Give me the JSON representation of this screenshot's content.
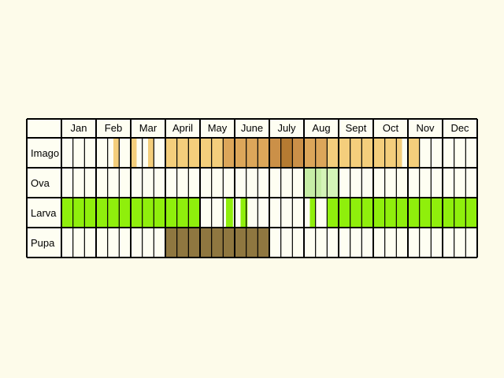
{
  "chart_data": {
    "type": "table",
    "months": [
      "Jan",
      "Feb",
      "Mar",
      "April",
      "May",
      "June",
      "July",
      "Aug",
      "Sept",
      "Oct",
      "Nov",
      "Dec"
    ],
    "subdivisions_per_month": 3,
    "rows": [
      {
        "stage": "Imago",
        "periods": [
          {
            "start": 1.5,
            "end": 1.67,
            "shade": "light"
          },
          {
            "start": 2.0,
            "end": 2.17,
            "shade": "light"
          },
          {
            "start": 2.5,
            "end": 2.67,
            "shade": "light"
          },
          {
            "start": 3.0,
            "end": 4.67,
            "shade": "light"
          },
          {
            "start": 4.67,
            "end": 7.0,
            "shade": "medium"
          },
          {
            "start": 5.67,
            "end": 6.0,
            "shade": "medium"
          },
          {
            "start": 6.0,
            "end": 6.33,
            "shade": "dark"
          },
          {
            "start": 6.33,
            "end": 6.67,
            "shade": "darkest"
          },
          {
            "start": 6.67,
            "end": 7.0,
            "shade": "dark"
          },
          {
            "start": 7.0,
            "end": 7.67,
            "shade": "medium"
          },
          {
            "start": 7.67,
            "end": 9.67,
            "shade": "light"
          },
          {
            "start": 9.67,
            "end": 9.83,
            "shade": "light"
          },
          {
            "start": 10.0,
            "end": 10.33,
            "shade": "light"
          }
        ]
      },
      {
        "stage": "Ova",
        "periods": [
          {
            "start": 7.0,
            "end": 7.5,
            "shade": "ova"
          },
          {
            "start": 7.5,
            "end": 8.0,
            "shade": "ova-light"
          }
        ]
      },
      {
        "stage": "Larva",
        "periods": [
          {
            "start": 0.0,
            "end": 4.0,
            "shade": "larva"
          },
          {
            "start": 4.75,
            "end": 4.95,
            "shade": "larva"
          },
          {
            "start": 5.17,
            "end": 5.37,
            "shade": "larva"
          },
          {
            "start": 7.17,
            "end": 7.33,
            "shade": "larva"
          },
          {
            "start": 7.67,
            "end": 12.0,
            "shade": "larva"
          }
        ]
      },
      {
        "stage": "Pupa",
        "periods": [
          {
            "start": 3.0,
            "end": 6.0,
            "shade": "pupa"
          }
        ]
      }
    ],
    "colors": {
      "light": "#f4ce7c",
      "medium": "#dca65a",
      "dark": "#cb9048",
      "darkest": "#b57b32",
      "ova": "#c6eda6",
      "ova-light": "#d4f4b8",
      "larva": "#8fef0c",
      "pupa": "#8f7740",
      "background": "#fdfbea",
      "cell": "#fefef2",
      "grid": "#000000"
    }
  }
}
